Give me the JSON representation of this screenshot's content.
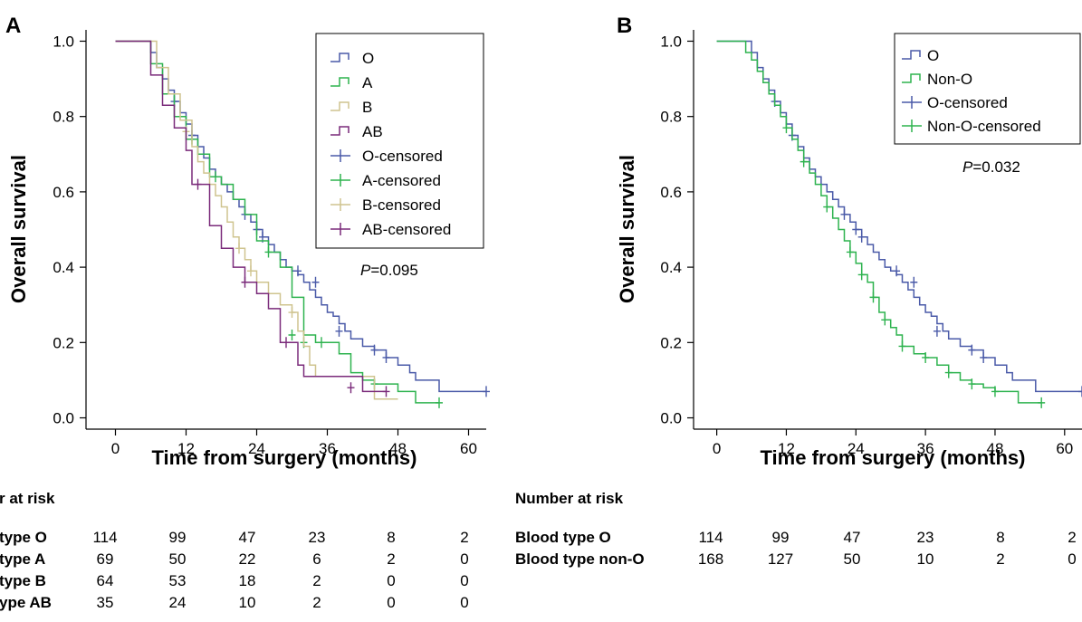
{
  "chart_data": [
    {
      "type": "line",
      "panel_label": "A",
      "ylabel": "Overall survival",
      "xlabel": "Time from surgery (months)",
      "xlim": [
        -5,
        63
      ],
      "ylim": [
        -0.03,
        1.03
      ],
      "x_ticks": [
        0,
        12,
        24,
        36,
        48,
        60
      ],
      "y_ticks": [
        0.0,
        0.2,
        0.4,
        0.6,
        0.8,
        1.0
      ],
      "y_tick_labels": [
        "0.0",
        "0.2",
        "0.4",
        "0.6",
        "0.8",
        "1.0"
      ],
      "grid": false,
      "legend_position": "top-right",
      "legend": [
        "O",
        "A",
        "B",
        "AB",
        "O-censored",
        "A-censored",
        "B-censored",
        "AB-censored"
      ],
      "annotation": {
        "p_label": "P",
        "p_value": "=0.095"
      },
      "series": [
        {
          "name": "O",
          "color": "#4a5aa8",
          "x": [
            0,
            6,
            7,
            8,
            9,
            10,
            11,
            12,
            13,
            14,
            15,
            16,
            17,
            18,
            19,
            20,
            21,
            22,
            23,
            24,
            25,
            26,
            27,
            28,
            29,
            30,
            31,
            32,
            33,
            34,
            35,
            36,
            37,
            38,
            39,
            40,
            42,
            44,
            46,
            48,
            50,
            51,
            55,
            63
          ],
          "y": [
            1.0,
            0.97,
            0.93,
            0.9,
            0.87,
            0.84,
            0.81,
            0.78,
            0.75,
            0.72,
            0.69,
            0.66,
            0.64,
            0.62,
            0.6,
            0.58,
            0.56,
            0.54,
            0.52,
            0.5,
            0.48,
            0.46,
            0.44,
            0.42,
            0.4,
            0.39,
            0.38,
            0.36,
            0.34,
            0.32,
            0.3,
            0.28,
            0.27,
            0.25,
            0.23,
            0.21,
            0.19,
            0.18,
            0.16,
            0.14,
            0.12,
            0.1,
            0.07,
            0.07
          ],
          "censored_x": [
            10,
            13,
            22,
            24,
            25,
            31,
            34,
            38,
            44,
            46,
            63
          ],
          "censored_y": [
            0.84,
            0.75,
            0.54,
            0.5,
            0.48,
            0.39,
            0.36,
            0.23,
            0.18,
            0.16,
            0.07
          ]
        },
        {
          "name": "A",
          "color": "#2eb34f",
          "x": [
            0,
            6,
            8,
            10,
            12,
            14,
            16,
            18,
            20,
            22,
            24,
            26,
            28,
            30,
            32,
            34,
            38,
            40,
            42,
            44,
            48,
            51,
            55
          ],
          "y": [
            1.0,
            0.94,
            0.86,
            0.8,
            0.74,
            0.7,
            0.64,
            0.62,
            0.58,
            0.54,
            0.47,
            0.44,
            0.4,
            0.32,
            0.22,
            0.2,
            0.17,
            0.12,
            0.1,
            0.09,
            0.07,
            0.04,
            0.04
          ],
          "censored_x": [
            13,
            17,
            26,
            30,
            32,
            35,
            44,
            55
          ],
          "censored_y": [
            0.74,
            0.64,
            0.44,
            0.22,
            0.2,
            0.2,
            0.09,
            0.04
          ]
        },
        {
          "name": "B",
          "color": "#cfc48f",
          "x": [
            0,
            7,
            9,
            11,
            13,
            14,
            15,
            16,
            17,
            18,
            19,
            20,
            21,
            22,
            23,
            24,
            26,
            28,
            30,
            31,
            32,
            33,
            34,
            44,
            48
          ],
          "y": [
            1.0,
            0.93,
            0.86,
            0.79,
            0.72,
            0.68,
            0.65,
            0.62,
            0.59,
            0.56,
            0.52,
            0.48,
            0.45,
            0.42,
            0.39,
            0.36,
            0.33,
            0.3,
            0.28,
            0.23,
            0.19,
            0.14,
            0.11,
            0.05,
            0.05
          ],
          "censored_x": [
            12,
            21,
            23,
            30
          ],
          "censored_y": [
            0.76,
            0.45,
            0.39,
            0.28
          ]
        },
        {
          "name": "AB",
          "color": "#7a2a7a",
          "x": [
            0,
            6,
            8,
            10,
            12,
            13,
            14,
            16,
            17,
            18,
            20,
            22,
            24,
            26,
            28,
            30,
            31,
            32,
            34,
            42,
            46
          ],
          "y": [
            1.0,
            0.91,
            0.83,
            0.77,
            0.71,
            0.62,
            0.62,
            0.51,
            0.51,
            0.45,
            0.4,
            0.36,
            0.33,
            0.29,
            0.2,
            0.2,
            0.14,
            0.11,
            0.11,
            0.07,
            0.07
          ],
          "censored_x": [
            14,
            22,
            29,
            40,
            46
          ],
          "censored_y": [
            0.62,
            0.36,
            0.2,
            0.08,
            0.07
          ]
        }
      ]
    },
    {
      "type": "line",
      "panel_label": "B",
      "ylabel": "Overall survival",
      "xlabel": "Time from surgery (months)",
      "xlim": [
        -4,
        63
      ],
      "ylim": [
        -0.03,
        1.03
      ],
      "x_ticks": [
        0,
        12,
        24,
        36,
        48,
        60
      ],
      "y_ticks": [
        0.0,
        0.2,
        0.4,
        0.6,
        0.8,
        1.0
      ],
      "y_tick_labels": [
        "0.0",
        "0.2",
        "0.4",
        "0.6",
        "0.8",
        "1.0"
      ],
      "grid": false,
      "legend_position": "top-right",
      "legend": [
        "O",
        "Non-O",
        "O-censored",
        "Non-O-censored"
      ],
      "annotation": {
        "p_label": "P",
        "p_value": "=0.032"
      },
      "series": [
        {
          "name": "O",
          "color": "#4a5aa8",
          "x": [
            0,
            6,
            7,
            8,
            9,
            10,
            11,
            12,
            13,
            14,
            15,
            16,
            17,
            18,
            19,
            20,
            21,
            22,
            23,
            24,
            25,
            26,
            27,
            28,
            29,
            30,
            31,
            32,
            33,
            34,
            35,
            36,
            37,
            38,
            39,
            40,
            42,
            44,
            46,
            48,
            50,
            51,
            55,
            63
          ],
          "y": [
            1.0,
            0.97,
            0.93,
            0.9,
            0.87,
            0.84,
            0.81,
            0.78,
            0.75,
            0.72,
            0.69,
            0.66,
            0.64,
            0.62,
            0.6,
            0.58,
            0.56,
            0.54,
            0.52,
            0.5,
            0.48,
            0.46,
            0.44,
            0.42,
            0.4,
            0.39,
            0.38,
            0.36,
            0.34,
            0.32,
            0.3,
            0.28,
            0.27,
            0.25,
            0.23,
            0.21,
            0.19,
            0.18,
            0.16,
            0.14,
            0.12,
            0.1,
            0.07,
            0.07
          ],
          "censored_x": [
            10,
            13,
            22,
            24,
            25,
            31,
            34,
            38,
            44,
            46,
            63
          ],
          "censored_y": [
            0.84,
            0.75,
            0.54,
            0.5,
            0.48,
            0.39,
            0.36,
            0.23,
            0.18,
            0.16,
            0.07
          ]
        },
        {
          "name": "Non-O",
          "color": "#2eb34f",
          "x": [
            0,
            5,
            6,
            7,
            8,
            9,
            10,
            11,
            12,
            13,
            14,
            15,
            16,
            17,
            18,
            19,
            20,
            21,
            22,
            23,
            24,
            25,
            26,
            27,
            28,
            29,
            30,
            31,
            32,
            34,
            36,
            38,
            40,
            42,
            44,
            46,
            48,
            52,
            56
          ],
          "y": [
            1.0,
            0.97,
            0.95,
            0.92,
            0.89,
            0.86,
            0.83,
            0.8,
            0.77,
            0.74,
            0.71,
            0.68,
            0.65,
            0.62,
            0.59,
            0.56,
            0.53,
            0.5,
            0.47,
            0.44,
            0.41,
            0.38,
            0.36,
            0.32,
            0.28,
            0.26,
            0.24,
            0.22,
            0.19,
            0.17,
            0.16,
            0.14,
            0.12,
            0.1,
            0.09,
            0.08,
            0.07,
            0.04,
            0.04
          ]
        },
        {
          "name": "O-censored",
          "color": "#4a5aa8"
        },
        {
          "name": "Non-O-censored",
          "color": "#2eb34f",
          "censored_x": [
            12,
            15,
            19,
            23,
            25,
            27,
            29,
            32,
            36,
            40,
            44,
            48,
            56
          ],
          "censored_y": [
            0.77,
            0.68,
            0.56,
            0.44,
            0.38,
            0.32,
            0.26,
            0.19,
            0.16,
            0.12,
            0.09,
            0.07,
            0.04
          ]
        }
      ]
    }
  ],
  "risk_tables": [
    {
      "heading": "r at risk",
      "rows": [
        {
          "label": "type O",
          "values": [
            "114",
            "99",
            "47",
            "23",
            "8",
            "2"
          ]
        },
        {
          "label": "type A",
          "values": [
            "69",
            "50",
            "22",
            "6",
            "2",
            "0"
          ]
        },
        {
          "label": "type B",
          "values": [
            "64",
            "53",
            "18",
            "2",
            "0",
            "0"
          ]
        },
        {
          "label": "ype AB",
          "values": [
            "35",
            "24",
            "10",
            "2",
            "0",
            "0"
          ]
        }
      ]
    },
    {
      "heading": "Number at risk",
      "rows": [
        {
          "label": "Blood type O",
          "values": [
            "114",
            "99",
            "47",
            "23",
            "8",
            "2"
          ]
        },
        {
          "label": "Blood type non-O",
          "values": [
            "168",
            "127",
            "50",
            "10",
            "2",
            "0"
          ]
        }
      ]
    }
  ]
}
